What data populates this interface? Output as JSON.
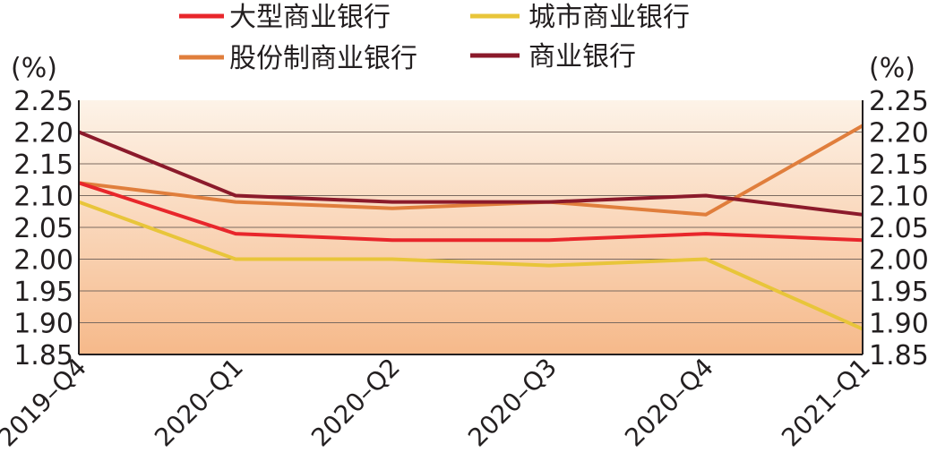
{
  "chart_data": {
    "type": "line",
    "categories": [
      "2019–Q4",
      "2020–Q1",
      "2020–Q2",
      "2020–Q3",
      "2020–Q4",
      "2021–Q1"
    ],
    "series": [
      {
        "name": "大型商业银行",
        "color": "#e8262b",
        "values": [
          2.12,
          2.04,
          2.03,
          2.03,
          2.04,
          2.03
        ]
      },
      {
        "name": "城市商业银行",
        "color": "#e8c53a",
        "values": [
          2.09,
          2.0,
          2.0,
          1.99,
          2.0,
          1.89
        ]
      },
      {
        "name": "股份制商业银行",
        "color": "#e07e3c",
        "values": [
          2.12,
          2.09,
          2.08,
          2.09,
          2.07,
          2.21
        ]
      },
      {
        "name": "商业银行",
        "color": "#8b1a2b",
        "values": [
          2.2,
          2.1,
          2.09,
          2.09,
          2.1,
          2.07
        ]
      }
    ],
    "yticks": [
      "2.25",
      "2.20",
      "2.15",
      "2.10",
      "2.05",
      "2.00",
      "1.95",
      "1.90",
      "1.85"
    ],
    "ylim": [
      1.85,
      2.25
    ],
    "yunit_left": "(%)",
    "yunit_right": "(%)",
    "grid": true,
    "legend_position": "top",
    "background_gradient": [
      "#fdf3e8",
      "#f6b98a"
    ]
  }
}
